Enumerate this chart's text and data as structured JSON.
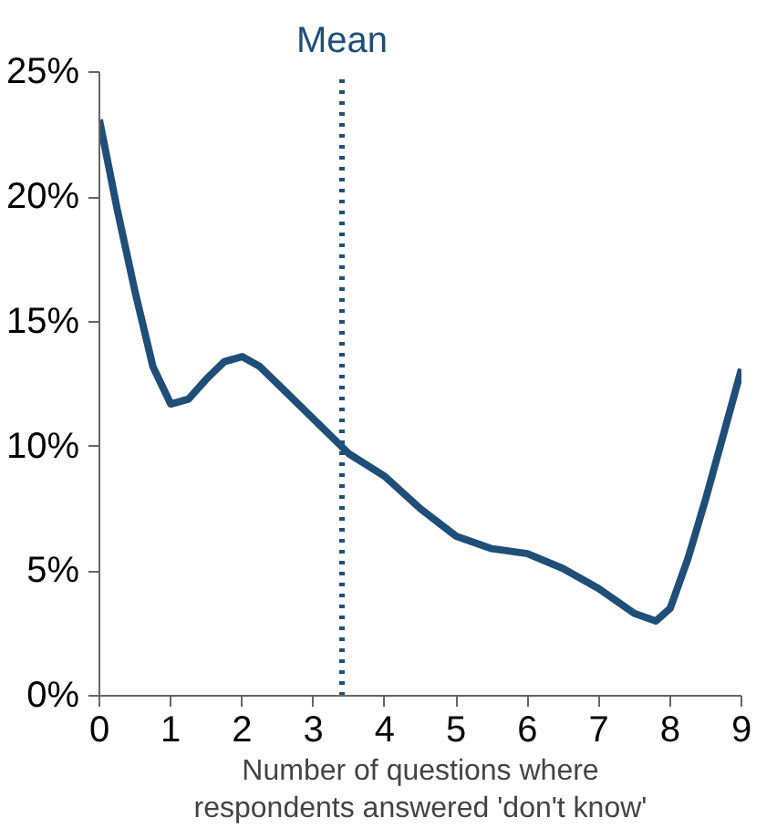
{
  "chart_data": {
    "type": "line",
    "xlabel": "Number of questions where\nrespondents answered 'don't know'",
    "x": [
      0,
      0.25,
      0.5,
      0.75,
      1,
      1.25,
      1.5,
      1.75,
      2,
      2.25,
      2.5,
      3,
      3.5,
      4,
      4.5,
      5,
      5.5,
      6,
      6.5,
      7,
      7.5,
      7.8,
      8,
      8.25,
      8.5,
      8.75,
      9
    ],
    "series": [
      {
        "color": "#1f4e79",
        "values": [
          23.1,
          19.5,
          16.2,
          13.2,
          11.7,
          11.9,
          12.7,
          13.4,
          13.6,
          13.2,
          12.5,
          11.1,
          9.7,
          8.8,
          7.5,
          6.4,
          5.9,
          5.7,
          5.1,
          4.3,
          3.3,
          3.0,
          3.5,
          5.5,
          7.9,
          10.5,
          13.1
        ]
      }
    ],
    "xlim": [
      0,
      9
    ],
    "xticks": [
      0,
      1,
      2,
      3,
      4,
      5,
      6,
      7,
      8,
      9
    ],
    "ylim": [
      0,
      25
    ],
    "yticks": [
      {
        "value": 0,
        "label": "0%"
      },
      {
        "value": 5,
        "label": "5%"
      },
      {
        "value": 10,
        "label": "10%"
      },
      {
        "value": 15,
        "label": "15%"
      },
      {
        "value": 20,
        "label": "20%"
      },
      {
        "value": 25,
        "label": "25%"
      }
    ],
    "ref_lines": [
      {
        "axis": "x",
        "value": 3.4,
        "label": "Mean",
        "color": "#1f4e79",
        "line_style": "dotted"
      }
    ],
    "grid": false,
    "marker": "none",
    "line_style": "solid"
  }
}
